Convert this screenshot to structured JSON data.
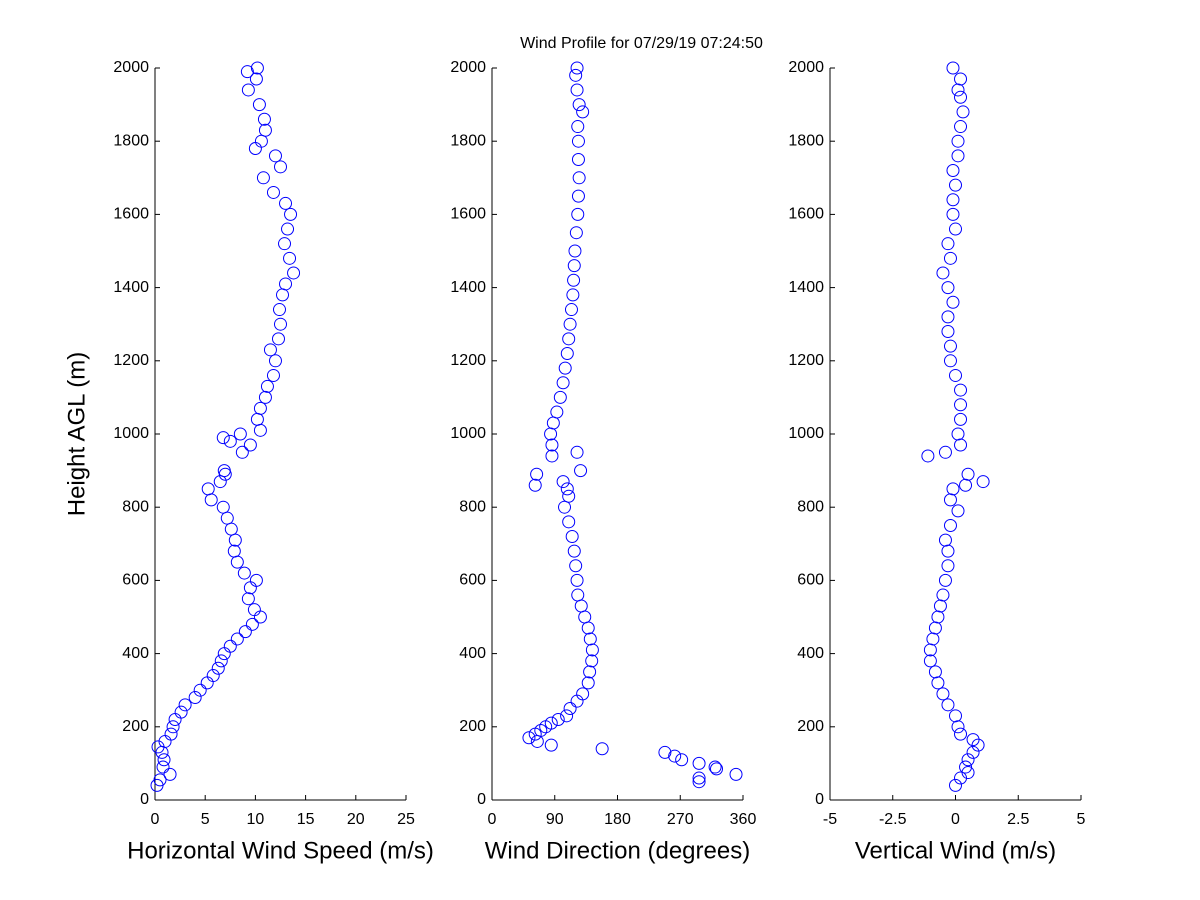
{
  "chart_data": [
    {
      "type": "scatter",
      "xlabel": "Horizontal Wind Speed (m/s)",
      "ylabel": "Height AGL (m)",
      "color": "#0000ff",
      "xlim": [
        0,
        25
      ],
      "xticks": [
        0,
        5,
        10,
        15,
        20,
        25
      ],
      "ylim": [
        0,
        2000
      ],
      "yticks": [
        0,
        200,
        400,
        600,
        800,
        1000,
        1200,
        1400,
        1600,
        1800,
        2000
      ],
      "x": [
        0.2,
        0.5,
        1.5,
        0.8,
        0.9,
        0.7,
        0.3,
        1.0,
        1.6,
        1.8,
        2.0,
        2.6,
        3.0,
        4.0,
        4.5,
        5.2,
        5.8,
        6.3,
        6.6,
        6.9,
        7.5,
        8.2,
        9.0,
        9.7,
        10.5,
        9.9,
        9.3,
        9.5,
        10.1,
        8.9,
        8.2,
        7.9,
        8.0,
        7.6,
        7.2,
        6.8,
        5.6,
        5.3,
        6.5,
        7.0,
        6.9,
        8.7,
        9.5,
        8.5,
        7.5,
        6.8,
        10.5,
        10.2,
        10.5,
        11.0,
        11.2,
        11.8,
        12.0,
        11.5,
        12.3,
        12.5,
        12.4,
        12.7,
        13.0,
        13.8,
        13.4,
        12.9,
        13.2,
        13.5,
        13.0,
        11.8,
        10.8,
        12.5,
        12.0,
        10.0,
        10.6,
        11.0,
        10.9,
        10.4,
        9.3,
        10.1,
        9.2,
        10.2
      ],
      "y": [
        40,
        55,
        70,
        90,
        110,
        130,
        145,
        160,
        180,
        200,
        220,
        240,
        260,
        280,
        300,
        320,
        340,
        360,
        380,
        400,
        420,
        440,
        460,
        480,
        500,
        520,
        550,
        580,
        600,
        620,
        650,
        680,
        710,
        740,
        770,
        800,
        820,
        850,
        870,
        890,
        900,
        950,
        970,
        1000,
        980,
        990,
        1010,
        1040,
        1070,
        1100,
        1130,
        1160,
        1200,
        1230,
        1260,
        1300,
        1340,
        1380,
        1410,
        1440,
        1480,
        1520,
        1560,
        1600,
        1630,
        1660,
        1700,
        1730,
        1760,
        1780,
        1800,
        1830,
        1860,
        1900,
        1940,
        1970,
        1990,
        2000
      ]
    },
    {
      "type": "scatter",
      "title": "Wind Profile for  07/29/19 07:24:50",
      "xlabel": "Wind Direction (degrees)",
      "color": "#0000ff",
      "xlim": [
        0,
        360
      ],
      "xticks": [
        0,
        90,
        180,
        270,
        360
      ],
      "ylim": [
        0,
        2000
      ],
      "yticks": [
        0,
        200,
        400,
        600,
        800,
        1000,
        1200,
        1400,
        1600,
        1800,
        2000
      ],
      "x": [
        297,
        297,
        350,
        322,
        320,
        297,
        272,
        262,
        248,
        158,
        85,
        65,
        53,
        62,
        70,
        77,
        85,
        95,
        107,
        112,
        122,
        130,
        138,
        140,
        143,
        144,
        141,
        138,
        133,
        128,
        123,
        122,
        120,
        118,
        115,
        110,
        104,
        110,
        108,
        102,
        62,
        64,
        127,
        122,
        86,
        86,
        84,
        88,
        93,
        98,
        102,
        105,
        108,
        110,
        112,
        114,
        116,
        117,
        118,
        119,
        121,
        123,
        124,
        125,
        124,
        124,
        123,
        130,
        125,
        122,
        120,
        122
      ],
      "y": [
        50,
        60,
        70,
        85,
        90,
        100,
        110,
        120,
        130,
        140,
        150,
        160,
        170,
        180,
        190,
        200,
        210,
        220,
        230,
        250,
        270,
        290,
        320,
        350,
        380,
        410,
        440,
        470,
        500,
        530,
        560,
        600,
        640,
        680,
        720,
        760,
        800,
        830,
        850,
        870,
        860,
        890,
        900,
        950,
        940,
        970,
        1000,
        1030,
        1060,
        1100,
        1140,
        1180,
        1220,
        1260,
        1300,
        1340,
        1380,
        1420,
        1460,
        1500,
        1550,
        1600,
        1650,
        1700,
        1750,
        1800,
        1840,
        1880,
        1900,
        1940,
        1980,
        2000
      ]
    },
    {
      "type": "scatter",
      "xlabel": "Vertical Wind (m/s)",
      "color": "#0000ff",
      "xlim": [
        -5,
        5
      ],
      "xticks": [
        -5,
        -2.5,
        0,
        2.5,
        5
      ],
      "ylim": [
        0,
        2000
      ],
      "yticks": [
        0,
        200,
        400,
        600,
        800,
        1000,
        1200,
        1400,
        1600,
        1800,
        2000
      ],
      "x": [
        0.0,
        0.2,
        0.5,
        0.4,
        0.5,
        0.7,
        0.9,
        0.7,
        0.2,
        0.1,
        0.0,
        -0.3,
        -0.5,
        -0.7,
        -0.8,
        -1.0,
        -1.0,
        -0.9,
        -0.8,
        -0.7,
        -0.6,
        -0.5,
        -0.4,
        -0.3,
        -0.3,
        -0.4,
        -0.2,
        0.1,
        -0.2,
        -0.1,
        1.1,
        0.4,
        0.5,
        -1.1,
        -0.4,
        0.2,
        0.1,
        0.2,
        0.2,
        0.2,
        0.0,
        -0.2,
        -0.2,
        -0.3,
        -0.3,
        -0.1,
        -0.3,
        -0.5,
        -0.2,
        -0.3,
        0.0,
        -0.1,
        -0.1,
        0.0,
        -0.1,
        0.1,
        0.1,
        0.2,
        0.3,
        0.2,
        0.1,
        0.2,
        -0.1
      ],
      "y": [
        40,
        60,
        75,
        90,
        110,
        130,
        150,
        165,
        180,
        200,
        230,
        260,
        290,
        320,
        350,
        380,
        410,
        440,
        470,
        500,
        530,
        560,
        600,
        640,
        680,
        710,
        750,
        790,
        820,
        850,
        870,
        860,
        890,
        940,
        950,
        970,
        1000,
        1040,
        1080,
        1120,
        1160,
        1200,
        1240,
        1280,
        1320,
        1360,
        1400,
        1440,
        1480,
        1520,
        1560,
        1600,
        1640,
        1680,
        1720,
        1760,
        1800,
        1840,
        1880,
        1920,
        1940,
        1970,
        2000
      ]
    }
  ]
}
